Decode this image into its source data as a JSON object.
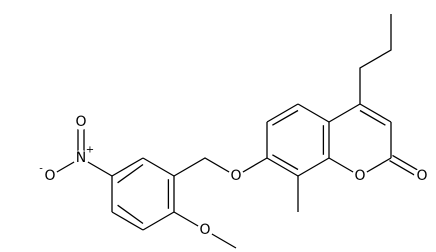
{
  "atoms": [
    {
      "symbol": "N",
      "charge": "+"
    },
    {
      "symbol": "O"
    },
    {
      "symbol": "O",
      "charge": "-"
    },
    {
      "symbol": "O"
    },
    {
      "symbol": "O"
    },
    {
      "symbol": "O"
    },
    {
      "symbol": "O"
    }
  ]
}
